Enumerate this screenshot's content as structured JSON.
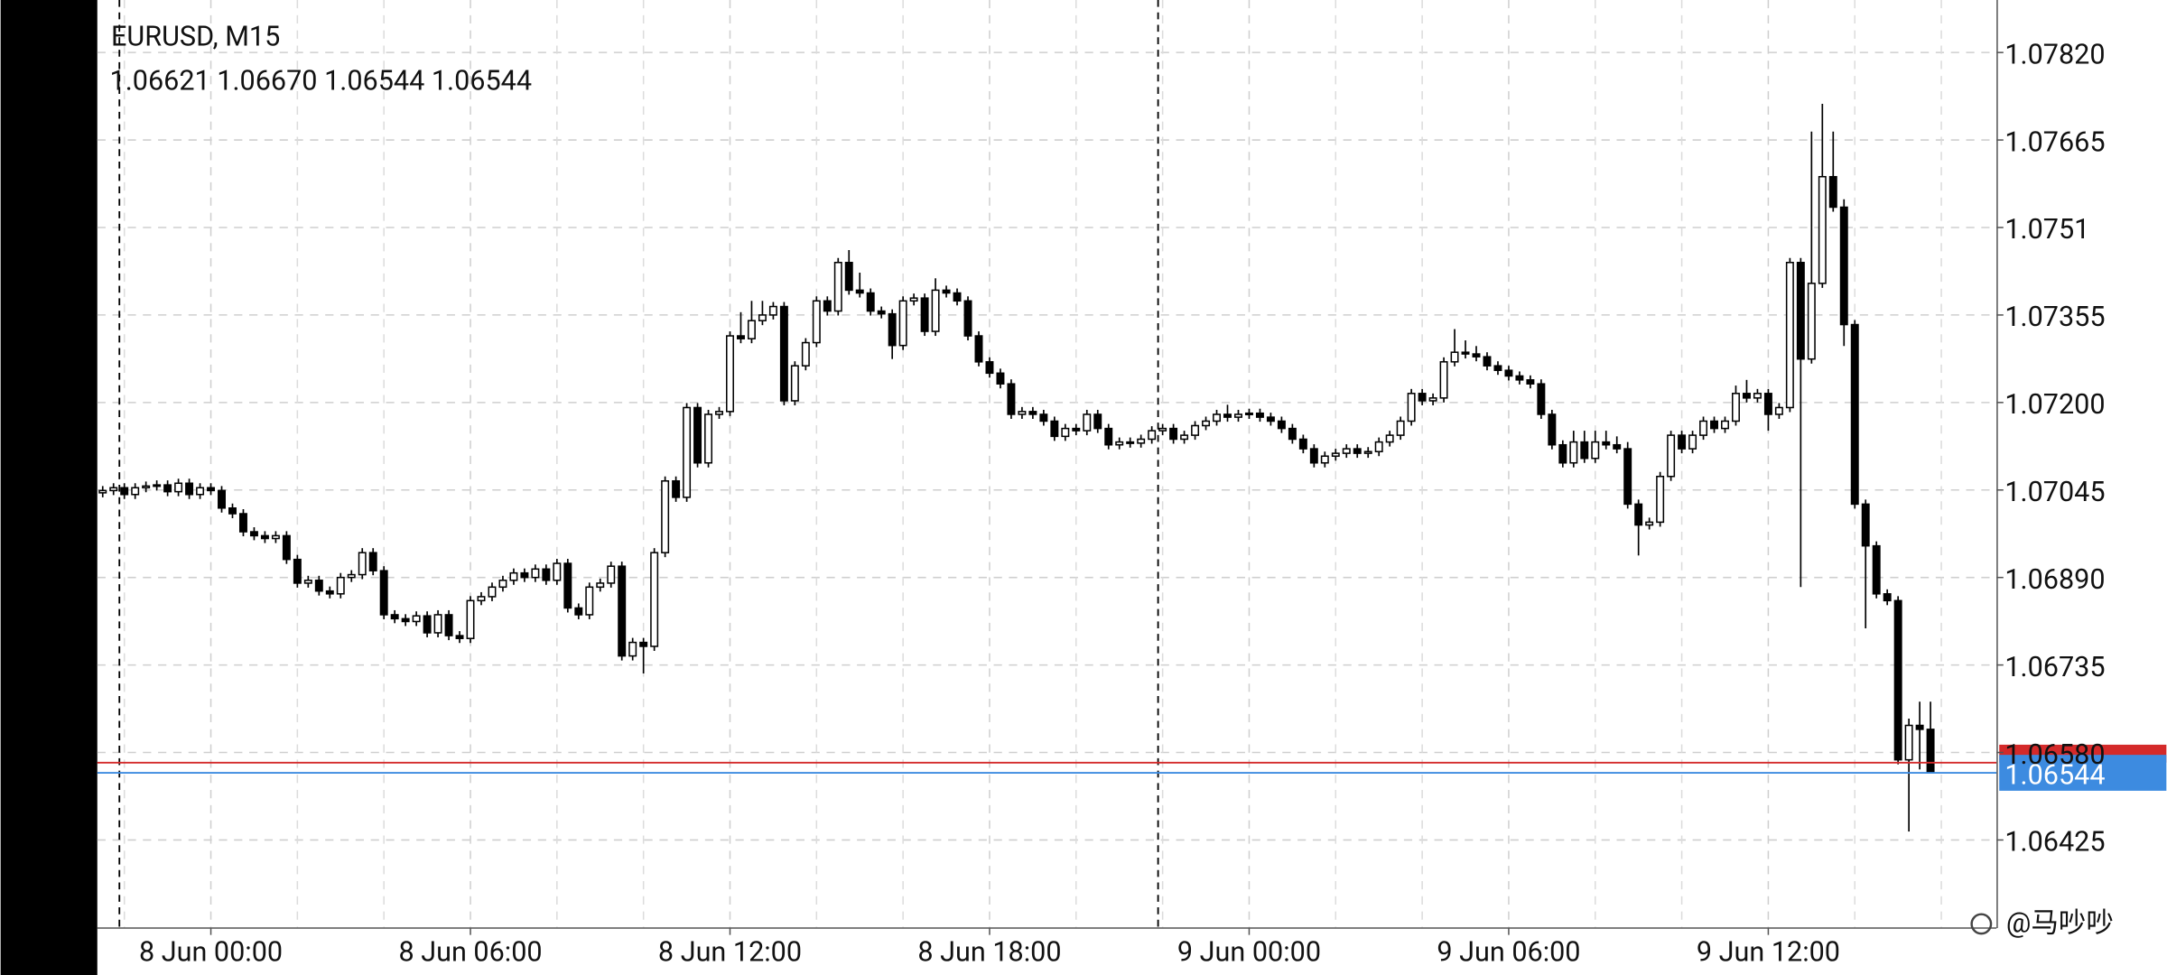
{
  "chart_data": {
    "type": "candlestick",
    "title": "EURUSD, M15",
    "quote": [
      "1.06621",
      "1.06670",
      "1.06544",
      "1.06544"
    ],
    "open": [
      1.0704,
      1.07044,
      1.07049,
      1.07037,
      1.07049,
      1.07052,
      1.07054,
      1.07042,
      1.07057,
      1.07037,
      1.07049,
      1.07044,
      1.07013,
      1.07003,
      1.06971,
      1.06964,
      1.06959,
      1.06964,
      1.06922,
      1.0688,
      1.06885,
      1.06866,
      1.06861,
      1.0689,
      1.06895,
      1.06934,
      1.06902,
      1.06824,
      1.06817,
      1.06812,
      1.06822,
      1.06792,
      1.06824,
      1.06787,
      1.06782,
      1.06849,
      1.06856,
      1.06873,
      1.06885,
      1.06898,
      1.0689,
      1.06905,
      1.06885,
      1.06915,
      1.06836,
      1.06824,
      1.06873,
      1.0688,
      1.0691,
      1.06751,
      1.06775,
      1.06768,
      1.06934,
      1.07061,
      1.07032,
      1.07191,
      1.07093,
      1.07179,
      1.07184,
      1.07318,
      1.07313,
      1.07345,
      1.07355,
      1.0737,
      1.07203,
      1.07265,
      1.07306,
      1.0738,
      1.07362,
      1.07448,
      1.07399,
      1.07394,
      1.07362,
      1.07357,
      1.07301,
      1.0738,
      1.07385,
      1.07326,
      1.07399,
      1.07394,
      1.0738,
      1.07318,
      1.07272,
      1.07252,
      1.07233,
      1.07179,
      1.07184,
      1.07179,
      1.07167,
      1.0714,
      1.07154,
      1.0715,
      1.07179,
      1.07154,
      1.07125,
      1.0713,
      1.07128,
      1.07135,
      1.0715,
      1.07154,
      1.07135,
      1.07142,
      1.07159,
      1.07167,
      1.07179,
      1.07174,
      1.07179,
      1.07181,
      1.07174,
      1.07167,
      1.07154,
      1.07135,
      1.07118,
      1.07093,
      1.07105,
      1.0711,
      1.07118,
      1.0711,
      1.07113,
      1.0713,
      1.07142,
      1.07167,
      1.07216,
      1.07203,
      1.07208,
      1.07272,
      1.07289,
      1.07286,
      1.07281,
      1.07265,
      1.07257,
      1.07247,
      1.0724,
      1.07233,
      1.07179,
      1.07125,
      1.07093,
      1.0713,
      1.07101,
      1.0713,
      1.07125,
      1.07118,
      1.0702,
      1.06983,
      1.06988,
      1.07069,
      1.07142,
      1.07118,
      1.07142,
      1.07167,
      1.07154,
      1.07167,
      1.07216,
      1.07208,
      1.07216,
      1.07179,
      1.07191,
      1.07448,
      1.07277,
      1.07411,
      1.076,
      1.07546,
      1.07338,
      1.0702,
      1.06946,
      1.06861,
      1.06849,
      1.06567,
      1.06628,
      1.06621
    ],
    "high": [
      1.07052,
      1.07057,
      1.07057,
      1.07057,
      1.0706,
      1.07062,
      1.07062,
      1.07065,
      1.07065,
      1.07057,
      1.07057,
      1.07052,
      1.07021,
      1.07011,
      1.06979,
      1.06972,
      1.06972,
      1.06972,
      1.0693,
      1.06893,
      1.06893,
      1.06874,
      1.06898,
      1.06903,
      1.06942,
      1.06942,
      1.0691,
      1.06832,
      1.06825,
      1.0683,
      1.0683,
      1.06832,
      1.06832,
      1.06795,
      1.06857,
      1.06864,
      1.06881,
      1.06893,
      1.06906,
      1.06906,
      1.06913,
      1.06913,
      1.06923,
      1.06923,
      1.06844,
      1.06881,
      1.06888,
      1.06918,
      1.06918,
      1.06783,
      1.06783,
      1.06942,
      1.07069,
      1.07069,
      1.07199,
      1.07199,
      1.07187,
      1.07192,
      1.07326,
      1.0736,
      1.0738,
      1.0738,
      1.07378,
      1.07378,
      1.07273,
      1.07314,
      1.07388,
      1.07388,
      1.07456,
      1.0747,
      1.0743,
      1.07402,
      1.0737,
      1.07365,
      1.07388,
      1.07393,
      1.07393,
      1.0742,
      1.07407,
      1.07402,
      1.07388,
      1.07326,
      1.0728,
      1.0726,
      1.07241,
      1.07192,
      1.07192,
      1.07187,
      1.07175,
      1.07162,
      1.07162,
      1.07187,
      1.07187,
      1.07162,
      1.07138,
      1.07138,
      1.07143,
      1.07158,
      1.07162,
      1.07162,
      1.0715,
      1.07167,
      1.07175,
      1.07187,
      1.07196,
      1.07187,
      1.07189,
      1.07189,
      1.07182,
      1.07175,
      1.07162,
      1.07143,
      1.07126,
      1.07113,
      1.07118,
      1.07126,
      1.07126,
      1.07121,
      1.07138,
      1.0715,
      1.07175,
      1.07224,
      1.07224,
      1.07216,
      1.0728,
      1.0733,
      1.0731,
      1.073,
      1.07289,
      1.07273,
      1.07265,
      1.07255,
      1.07248,
      1.07241,
      1.07187,
      1.07133,
      1.0715,
      1.0715,
      1.0715,
      1.0715,
      1.0714,
      1.0713,
      1.07028,
      1.06996,
      1.07077,
      1.0715,
      1.0715,
      1.0715,
      1.07175,
      1.07175,
      1.07175,
      1.0723,
      1.0724,
      1.07224,
      1.07224,
      1.07199,
      1.07456,
      1.07456,
      1.0768,
      1.07729,
      1.0768,
      1.0756,
      1.07346,
      1.07028,
      1.06954,
      1.06869,
      1.06857,
      1.0664,
      1.0667,
      1.0667
    ],
    "low": [
      1.07032,
      1.07036,
      1.07029,
      1.07029,
      1.07041,
      1.07044,
      1.07034,
      1.07034,
      1.07029,
      1.07029,
      1.07036,
      1.07005,
      1.06995,
      1.06963,
      1.06956,
      1.06951,
      1.06951,
      1.06914,
      1.06872,
      1.06872,
      1.06858,
      1.06853,
      1.06853,
      1.06882,
      1.06887,
      1.06894,
      1.06816,
      1.06809,
      1.06804,
      1.06804,
      1.06784,
      1.06784,
      1.06779,
      1.06774,
      1.06774,
      1.06841,
      1.06848,
      1.06865,
      1.06877,
      1.06882,
      1.06882,
      1.06877,
      1.06877,
      1.06828,
      1.06816,
      1.06816,
      1.06865,
      1.06872,
      1.06743,
      1.06743,
      1.0672,
      1.0676,
      1.06926,
      1.07024,
      1.07024,
      1.07085,
      1.07085,
      1.07171,
      1.07176,
      1.07305,
      1.07305,
      1.07337,
      1.07347,
      1.07195,
      1.07195,
      1.07257,
      1.07298,
      1.07354,
      1.07354,
      1.07391,
      1.07386,
      1.07354,
      1.07349,
      1.07277,
      1.07293,
      1.07372,
      1.07318,
      1.07318,
      1.07386,
      1.07372,
      1.0731,
      1.07264,
      1.07244,
      1.07225,
      1.07171,
      1.07171,
      1.07171,
      1.07159,
      1.07132,
      1.07132,
      1.07142,
      1.07142,
      1.07146,
      1.07117,
      1.07117,
      1.0712,
      1.0712,
      1.07127,
      1.07142,
      1.07127,
      1.07127,
      1.07134,
      1.07151,
      1.07159,
      1.07166,
      1.07166,
      1.07171,
      1.07166,
      1.07159,
      1.07146,
      1.07127,
      1.0711,
      1.07085,
      1.07085,
      1.07097,
      1.07102,
      1.07102,
      1.07102,
      1.07105,
      1.07122,
      1.07134,
      1.07159,
      1.07195,
      1.07195,
      1.072,
      1.07264,
      1.07278,
      1.07273,
      1.07257,
      1.07249,
      1.07239,
      1.07232,
      1.07225,
      1.07171,
      1.07117,
      1.07085,
      1.07085,
      1.07093,
      1.07093,
      1.07117,
      1.0711,
      1.07012,
      1.06929,
      1.06975,
      1.0698,
      1.07061,
      1.0711,
      1.0711,
      1.07134,
      1.07146,
      1.07146,
      1.07159,
      1.072,
      1.072,
      1.0715,
      1.07171,
      1.07183,
      1.06873,
      1.07269,
      1.07403,
      1.07538,
      1.073,
      1.07012,
      1.068,
      1.06853,
      1.06841,
      1.06559,
      1.0644,
      1.0655,
      1.06544
    ],
    "close": [
      1.07044,
      1.07049,
      1.07037,
      1.07049,
      1.07052,
      1.07054,
      1.07042,
      1.07057,
      1.07037,
      1.07049,
      1.07044,
      1.07013,
      1.07003,
      1.06971,
      1.06964,
      1.06959,
      1.06964,
      1.06922,
      1.0688,
      1.06885,
      1.06866,
      1.06861,
      1.0689,
      1.06895,
      1.06934,
      1.06902,
      1.06824,
      1.06817,
      1.06812,
      1.06822,
      1.06792,
      1.06824,
      1.06787,
      1.06782,
      1.06849,
      1.06856,
      1.06873,
      1.06885,
      1.06898,
      1.0689,
      1.06905,
      1.06885,
      1.06915,
      1.06836,
      1.06824,
      1.06873,
      1.0688,
      1.0691,
      1.06751,
      1.06775,
      1.06768,
      1.06934,
      1.07061,
      1.07032,
      1.07191,
      1.07093,
      1.07179,
      1.07184,
      1.07318,
      1.07313,
      1.07345,
      1.07355,
      1.0737,
      1.07203,
      1.07265,
      1.07306,
      1.0738,
      1.07362,
      1.07448,
      1.07399,
      1.07394,
      1.07362,
      1.07357,
      1.07301,
      1.0738,
      1.07385,
      1.07326,
      1.07399,
      1.07394,
      1.0738,
      1.07318,
      1.07272,
      1.07252,
      1.07233,
      1.07179,
      1.07184,
      1.07179,
      1.07167,
      1.0714,
      1.07154,
      1.0715,
      1.07179,
      1.07154,
      1.07125,
      1.0713,
      1.07128,
      1.07135,
      1.0715,
      1.07154,
      1.07135,
      1.07142,
      1.07159,
      1.07167,
      1.07179,
      1.07174,
      1.07179,
      1.07181,
      1.07174,
      1.07167,
      1.07154,
      1.07135,
      1.07118,
      1.07093,
      1.07105,
      1.0711,
      1.07118,
      1.0711,
      1.07113,
      1.0713,
      1.07142,
      1.07167,
      1.07216,
      1.07203,
      1.07208,
      1.07272,
      1.07289,
      1.07286,
      1.07281,
      1.07265,
      1.07257,
      1.07247,
      1.0724,
      1.07233,
      1.07179,
      1.07125,
      1.07093,
      1.0713,
      1.07101,
      1.0713,
      1.07125,
      1.07118,
      1.0702,
      1.06983,
      1.06988,
      1.07069,
      1.07142,
      1.07118,
      1.07142,
      1.07167,
      1.07154,
      1.07167,
      1.07216,
      1.07208,
      1.07216,
      1.07179,
      1.07191,
      1.07448,
      1.07277,
      1.07411,
      1.076,
      1.07546,
      1.07338,
      1.0702,
      1.06946,
      1.06861,
      1.06849,
      1.06567,
      1.06628,
      1.06621,
      1.06544
    ],
    "xlim": [
      -0.5,
      175.1
    ],
    "xticks": [
      {
        "value": 10,
        "label": "8 Jun 00:00"
      },
      {
        "value": 34,
        "label": "8 Jun 06:00"
      },
      {
        "value": 58,
        "label": "8 Jun 12:00"
      },
      {
        "value": 82,
        "label": "8 Jun 18:00"
      },
      {
        "value": 106,
        "label": "9 Jun 00:00"
      },
      {
        "value": 130,
        "label": "9 Jun 06:00"
      },
      {
        "value": 154,
        "label": "9 Jun 12:00"
      }
    ],
    "ylim": [
      1.06269,
      1.07913
    ],
    "yticks": [
      {
        "value": 1.0782,
        "label": "1.07820"
      },
      {
        "value": 1.07665,
        "label": "1.07665"
      },
      1.0751,
      1.07355,
      {
        "value": 1.072,
        "label": "1.07200"
      },
      1.07045,
      {
        "value": 1.0689,
        "label": "1.06890"
      },
      1.06735,
      {
        "value": 1.0658,
        "label": "1.06580"
      },
      1.06425
    ],
    "grid": true,
    "up_color": "#ffffff",
    "down_color": "#000000",
    "bid": {
      "value": 1.06544,
      "label": "1.06544"
    },
    "bid_color": "#3d8be0",
    "ask": 1.06562,
    "ask_color": "#d42a2a",
    "watermark": "@马吵吵"
  }
}
